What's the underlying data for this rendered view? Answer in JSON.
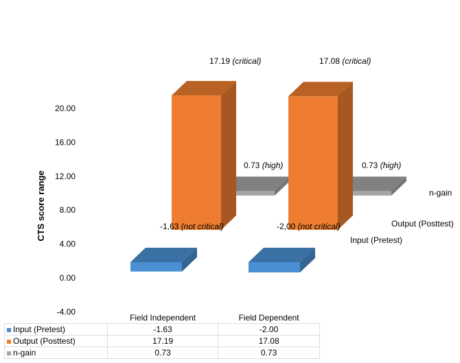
{
  "chart_data": {
    "type": "bar",
    "three_d": true,
    "ylabel": "CTS  score range",
    "ylim": [
      -4,
      20
    ],
    "yticks": [
      "-4.00",
      "0.00",
      "4.00",
      "8.00",
      "12.00",
      "16.00",
      "20.00"
    ],
    "yticks_values": [
      -4,
      0,
      4,
      8,
      12,
      16,
      20
    ],
    "categories": [
      "Field Independent",
      "Field Dependent"
    ],
    "series": [
      {
        "name": "Input (Pretest)",
        "color": "#4a8fd1",
        "values": [
          -1.63,
          -2.0
        ],
        "labels": [
          "-1,63",
          "-2,00"
        ],
        "qualifiers": [
          "(not critical)",
          "(not critical)"
        ]
      },
      {
        "name": "Output (Posttest)",
        "color": "#ee7d31",
        "values": [
          17.19,
          17.08
        ],
        "labels": [
          "17.19",
          "17.08"
        ],
        "qualifiers": [
          "(critical)",
          "(critical)"
        ]
      },
      {
        "name": "n-gain",
        "color": "#a5a5a5",
        "values": [
          0.73,
          0.73
        ],
        "labels": [
          "0.73",
          "0.73"
        ],
        "qualifiers": [
          "(high)",
          "(high)"
        ]
      }
    ],
    "depth_labels": [
      "n-gain",
      "Output (Posttest)",
      "Input (Pretest)"
    ],
    "table": {
      "columns": [
        "Field Independent",
        "Field Dependent"
      ],
      "rows": [
        {
          "label": "Input (Pretest)",
          "values": [
            "-1.63",
            "-2.00"
          ]
        },
        {
          "label": "Output (Posttest)",
          "values": [
            "17.19",
            "17.08"
          ]
        },
        {
          "label": "n-gain",
          "values": [
            "0.73",
            "0.73"
          ]
        }
      ]
    }
  }
}
